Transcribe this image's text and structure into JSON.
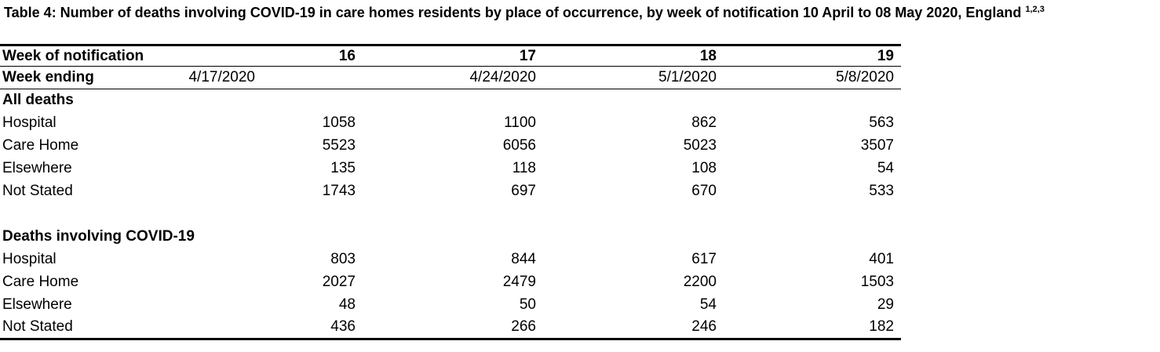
{
  "title": {
    "text": "Table 4: Number of deaths involving COVID-19 in care homes residents by place of occurrence, by week of notification 10 April to 08 May 2020, England",
    "superscript": "1,2,3"
  },
  "table": {
    "header": {
      "week_of_notification_label": "Week of notification",
      "weeks": [
        "16",
        "17",
        "18",
        "19"
      ],
      "week_ending_label": "Week ending",
      "week_ending_dates": [
        "4/17/2020",
        "4/24/2020",
        "5/1/2020",
        "5/8/2020"
      ]
    },
    "sections": [
      {
        "label": "All deaths",
        "rows": [
          {
            "label": "Hospital",
            "values": [
              "1058",
              "1100",
              "862",
              "563"
            ]
          },
          {
            "label": "Care Home",
            "values": [
              "5523",
              "6056",
              "5023",
              "3507"
            ]
          },
          {
            "label": "Elsewhere",
            "values": [
              "135",
              "118",
              "108",
              "54"
            ]
          },
          {
            "label": "Not Stated",
            "values": [
              "1743",
              "697",
              "670",
              "533"
            ]
          }
        ]
      },
      {
        "label": "Deaths involving COVID-19",
        "rows": [
          {
            "label": "Hospital",
            "values": [
              "803",
              "844",
              "617",
              "401"
            ]
          },
          {
            "label": "Care Home",
            "values": [
              "2027",
              "2479",
              "2200",
              "1503"
            ]
          },
          {
            "label": "Elsewhere",
            "values": [
              "48",
              "50",
              "54",
              "29"
            ]
          },
          {
            "label": "Not Stated",
            "values": [
              "436",
              "266",
              "246",
              "182"
            ]
          }
        ]
      }
    ]
  }
}
